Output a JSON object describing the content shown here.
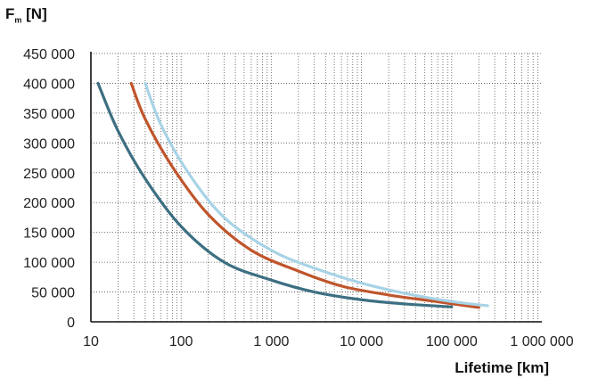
{
  "chart_data": {
    "type": "line",
    "title": "",
    "ylabel": {
      "main": "F",
      "sub": "m",
      "unit": " [N]"
    },
    "xlabel": "Lifetime [km]",
    "x_scale": "log",
    "xlim": [
      10,
      1000000
    ],
    "ylim": [
      0,
      450000
    ],
    "grid": true,
    "legend": "none",
    "xticks": [
      {
        "value": 10,
        "label": "10"
      },
      {
        "value": 100,
        "label": "100"
      },
      {
        "value": 1000,
        "label": "1 000"
      },
      {
        "value": 10000,
        "label": "10 000"
      },
      {
        "value": 100000,
        "label": "100 000"
      },
      {
        "value": 1000000,
        "label": "1 000 000"
      }
    ],
    "yticks": [
      {
        "value": 0,
        "label": "0"
      },
      {
        "value": 50000,
        "label": "50 000"
      },
      {
        "value": 100000,
        "label": "100 000"
      },
      {
        "value": 150000,
        "label": "150 000"
      },
      {
        "value": 200000,
        "label": "200 000"
      },
      {
        "value": 250000,
        "label": "250 000"
      },
      {
        "value": 300000,
        "label": "300 000"
      },
      {
        "value": 350000,
        "label": "350 000"
      },
      {
        "value": 400000,
        "label": "400 000"
      },
      {
        "value": 450000,
        "label": "450 000"
      }
    ],
    "series": [
      {
        "color": "#3d6f82",
        "x": [
          12,
          20,
          40,
          100,
          300,
          1000,
          3000,
          10000,
          30000,
          100000
        ],
        "y": [
          400000,
          320000,
          240000,
          160000,
          100000,
          70000,
          50000,
          37000,
          30000,
          25000
        ]
      },
      {
        "color": "#c0552c",
        "x": [
          28,
          40,
          80,
          200,
          600,
          2000,
          6000,
          20000,
          60000,
          200000
        ],
        "y": [
          400000,
          340000,
          260000,
          180000,
          120000,
          85000,
          60000,
          45000,
          35000,
          24000
        ]
      },
      {
        "color": "#a8d3e6",
        "x": [
          40,
          60,
          120,
          300,
          1000,
          3000,
          10000,
          30000,
          100000,
          250000
        ],
        "y": [
          400000,
          330000,
          250000,
          175000,
          120000,
          90000,
          65000,
          48000,
          34000,
          27000
        ]
      }
    ]
  }
}
